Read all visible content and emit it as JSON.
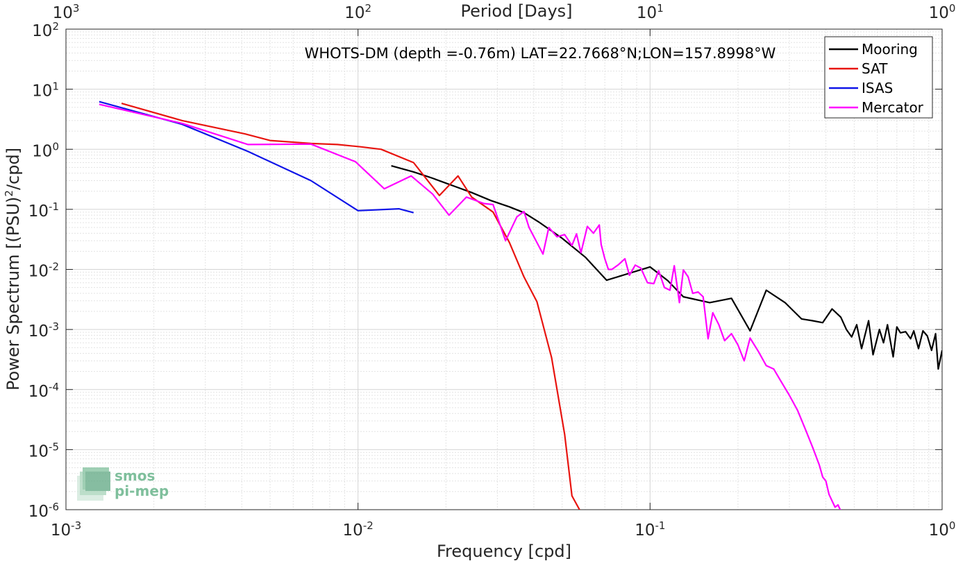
{
  "chart_data": {
    "type": "line",
    "title": "WHOTS-DM (depth =-0.76m) LAT=22.7668°N;LON=157.8998°W",
    "xlabel": "Frequency [cpd]",
    "ylabel": "Power Spectrum [(PSU)^2/cpd]",
    "ylabel_parts": {
      "main": "Power Spectrum [(PSU)",
      "sup": "2",
      "tail": "/cpd]"
    },
    "top_xlabel": "Period [Days]",
    "xscale": "log",
    "yscale": "log",
    "xlim": [
      0.001,
      1
    ],
    "ylim": [
      1e-06,
      100
    ],
    "grid": true,
    "legend_position": "top-right",
    "x_ticks": [
      {
        "value": 0.001,
        "base": "10",
        "exp": "-3"
      },
      {
        "value": 0.01,
        "base": "10",
        "exp": "-2"
      },
      {
        "value": 0.1,
        "base": "10",
        "exp": "-1"
      },
      {
        "value": 1,
        "base": "10",
        "exp": "0"
      }
    ],
    "y_ticks": [
      {
        "value": 100,
        "base": "10",
        "exp": "2"
      },
      {
        "value": 10,
        "base": "10",
        "exp": "1"
      },
      {
        "value": 1,
        "base": "10",
        "exp": "0"
      },
      {
        "value": 0.1,
        "base": "10",
        "exp": "-1"
      },
      {
        "value": 0.01,
        "base": "10",
        "exp": "-2"
      },
      {
        "value": 0.001,
        "base": "10",
        "exp": "-3"
      },
      {
        "value": 0.0001,
        "base": "10",
        "exp": "-4"
      },
      {
        "value": 1e-05,
        "base": "10",
        "exp": "-5"
      },
      {
        "value": 1e-06,
        "base": "10",
        "exp": "-6"
      }
    ],
    "top_ticks": [
      {
        "value": 0.001,
        "base": "10",
        "exp": "3"
      },
      {
        "value": 0.01,
        "base": "10",
        "exp": "2"
      },
      {
        "value": 0.1,
        "base": "10",
        "exp": "1"
      },
      {
        "value": 1,
        "base": "10",
        "exp": "0"
      }
    ],
    "series": [
      {
        "name": "Mooring",
        "color": "#000000",
        "x": [
          0.013,
          0.0155,
          0.018,
          0.021,
          0.0245,
          0.0285,
          0.033,
          0.037,
          0.0415,
          0.05,
          0.06,
          0.071,
          0.082,
          0.1,
          0.115,
          0.13,
          0.16,
          0.19,
          0.22,
          0.25,
          0.29,
          0.33,
          0.36,
          0.39,
          0.42,
          0.45,
          0.47,
          0.49,
          0.51,
          0.53,
          0.56,
          0.58,
          0.61,
          0.63,
          0.65,
          0.68,
          0.7,
          0.72,
          0.75,
          0.78,
          0.8,
          0.83,
          0.86,
          0.89,
          0.92,
          0.95,
          0.97,
          1.0
        ],
        "y": [
          0.53,
          0.42,
          0.33,
          0.25,
          0.19,
          0.14,
          0.11,
          0.088,
          0.062,
          0.033,
          0.016,
          0.0066,
          0.0082,
          0.011,
          0.0065,
          0.0035,
          0.0028,
          0.0033,
          0.00095,
          0.0045,
          0.0028,
          0.0015,
          0.0014,
          0.0013,
          0.0022,
          0.0016,
          0.001,
          0.00075,
          0.0012,
          0.00048,
          0.0014,
          0.00038,
          0.001,
          0.0006,
          0.0012,
          0.00035,
          0.0011,
          0.00088,
          0.00092,
          0.0007,
          0.00095,
          0.00048,
          0.00095,
          0.00078,
          0.00045,
          0.00085,
          0.00022,
          0.00045
        ]
      },
      {
        "name": "SAT",
        "color": "#e8140f",
        "x": [
          0.00155,
          0.0025,
          0.0041,
          0.005,
          0.0069,
          0.0085,
          0.0102,
          0.012,
          0.0155,
          0.019,
          0.022,
          0.0245,
          0.029,
          0.033,
          0.037,
          0.041,
          0.046,
          0.051,
          0.054,
          0.0575
        ],
        "y": [
          5.8,
          3.0,
          1.8,
          1.4,
          1.25,
          1.2,
          1.1,
          1.0,
          0.6,
          0.17,
          0.36,
          0.16,
          0.09,
          0.028,
          0.0075,
          0.0029,
          0.00034,
          1.8e-05,
          1.7e-06,
          9.8e-07
        ]
      },
      {
        "name": "ISAS",
        "color": "#0f14e8",
        "x": [
          0.0013,
          0.0025,
          0.0042,
          0.0069,
          0.01,
          0.0138,
          0.0155
        ],
        "y": [
          6.2,
          2.6,
          0.92,
          0.3,
          0.095,
          0.102,
          0.088
        ]
      },
      {
        "name": "Mercator",
        "color": "#ff00ff",
        "x": [
          0.0013,
          0.0025,
          0.0042,
          0.0069,
          0.0098,
          0.0123,
          0.0152,
          0.018,
          0.0205,
          0.0235,
          0.027,
          0.029,
          0.032,
          0.035,
          0.037,
          0.0385,
          0.041,
          0.043,
          0.045,
          0.048,
          0.051,
          0.054,
          0.056,
          0.058,
          0.061,
          0.064,
          0.067,
          0.068,
          0.07,
          0.072,
          0.074,
          0.078,
          0.082,
          0.085,
          0.089,
          0.093,
          0.098,
          0.103,
          0.107,
          0.112,
          0.117,
          0.121,
          0.126,
          0.13,
          0.135,
          0.14,
          0.146,
          0.152,
          0.158,
          0.164,
          0.172,
          0.18,
          0.19,
          0.2,
          0.21,
          0.22,
          0.235,
          0.25,
          0.265,
          0.28,
          0.3,
          0.32,
          0.34,
          0.36,
          0.38,
          0.39,
          0.4,
          0.41,
          0.42,
          0.43,
          0.44,
          0.45
        ],
        "y": [
          5.6,
          2.7,
          1.2,
          1.22,
          0.62,
          0.22,
          0.36,
          0.18,
          0.08,
          0.16,
          0.125,
          0.12,
          0.03,
          0.075,
          0.092,
          0.05,
          0.028,
          0.018,
          0.05,
          0.035,
          0.038,
          0.025,
          0.039,
          0.019,
          0.052,
          0.04,
          0.055,
          0.026,
          0.015,
          0.01,
          0.01,
          0.012,
          0.015,
          0.008,
          0.0118,
          0.0105,
          0.006,
          0.0058,
          0.0095,
          0.005,
          0.0045,
          0.0115,
          0.0028,
          0.0098,
          0.0075,
          0.004,
          0.0042,
          0.0035,
          0.0007,
          0.0019,
          0.0012,
          0.00065,
          0.00085,
          0.00055,
          0.0003,
          0.00072,
          0.00043,
          0.00025,
          0.00022,
          0.00014,
          8e-05,
          4.5e-05,
          2.2e-05,
          1.1e-05,
          5.5e-06,
          3.5e-06,
          3e-06,
          1.8e-06,
          1.4e-06,
          1.1e-06,
          1.2e-06,
          9.5e-07
        ]
      }
    ]
  },
  "logo": {
    "line1": "smos",
    "line2": "pi-mep"
  }
}
